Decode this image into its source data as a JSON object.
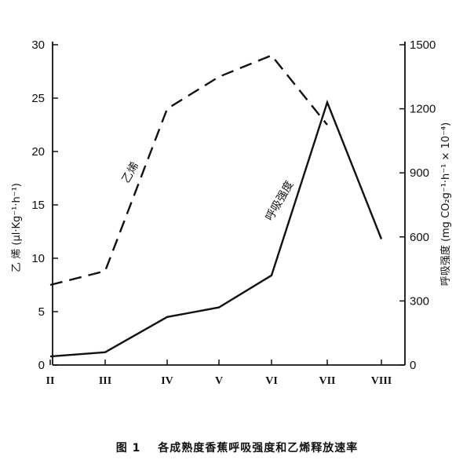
{
  "chart_data": {
    "type": "line",
    "categories": [
      "II",
      "III",
      "IV",
      "V",
      "VI",
      "VII",
      "VIII"
    ],
    "left_axis": {
      "label": "乙 烯 (μl·Kg⁻¹·h⁻¹)",
      "ylim": [
        0,
        30
      ],
      "ticks": [
        0,
        5,
        10,
        15,
        20,
        25,
        30
      ]
    },
    "right_axis": {
      "label": "呼吸强度 (mg CO₂g⁻¹·h⁻¹ × 10⁻⁴)",
      "ylim": [
        0,
        1500
      ],
      "ticks": [
        0,
        300,
        600,
        900,
        1200,
        1500
      ]
    },
    "series": [
      {
        "name": "乙烯",
        "axis": "left",
        "style": "dashed",
        "x": [
          "II",
          "III",
          "IV",
          "V",
          "VI",
          "VII"
        ],
        "values": [
          7.5,
          8.8,
          24,
          27,
          29,
          22.5
        ]
      },
      {
        "name": "呼吸强度",
        "axis": "right",
        "style": "solid",
        "x": [
          "II",
          "III",
          "IV",
          "V",
          "VI",
          "VII",
          "VIII"
        ],
        "values": [
          40,
          60,
          225,
          270,
          420,
          1230,
          590
        ]
      }
    ],
    "grid": false,
    "legend": "none"
  },
  "caption": {
    "figure": "图 1",
    "text": "各成熟度香蕉呼吸强度和乙烯释放速率"
  }
}
